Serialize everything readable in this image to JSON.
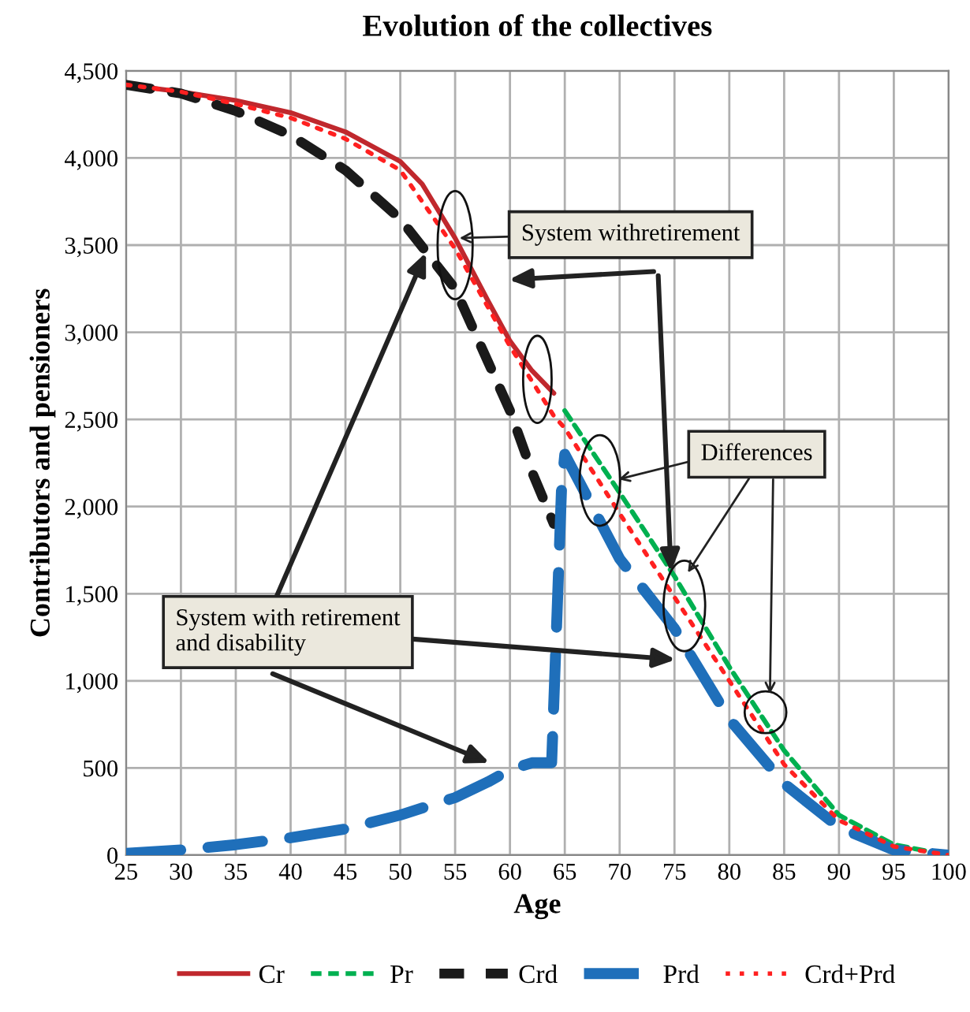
{
  "chart_data": {
    "type": "line",
    "title": "Evolution of the collectives",
    "xlabel": "Age",
    "ylabel": "Contributors and pensioners",
    "xlim": [
      25,
      100
    ],
    "xticks": [
      25,
      30,
      35,
      40,
      45,
      50,
      55,
      60,
      65,
      70,
      75,
      80,
      85,
      90,
      95,
      100
    ],
    "ylim": [
      0,
      4500
    ],
    "yticks": [
      {
        "value": 0,
        "label": "0"
      },
      {
        "value": 500,
        "label": "500"
      },
      {
        "value": 1000,
        "label": "1,000"
      },
      {
        "value": 1500,
        "label": "1,500"
      },
      {
        "value": 2000,
        "label": "2,000"
      },
      {
        "value": 2500,
        "label": "2,500"
      },
      {
        "value": 3000,
        "label": "3,000"
      },
      {
        "value": 3500,
        "label": "3,500"
      },
      {
        "value": 4000,
        "label": "4,000"
      },
      {
        "value": 4500,
        "label": "4,500"
      }
    ],
    "grid": true,
    "legend": "bottom",
    "marker": "none",
    "series": [
      {
        "name": "Cr",
        "color": "#c0282d",
        "line_style": "solid",
        "x": [
          25,
          30,
          35,
          40,
          45,
          50,
          52,
          55,
          58,
          60,
          62,
          64
        ],
        "values": [
          4420,
          4380,
          4330,
          4260,
          4150,
          3980,
          3850,
          3540,
          3180,
          2950,
          2780,
          2650
        ]
      },
      {
        "name": "Pr",
        "color": "#00b050",
        "line_style": "dashed",
        "x": [
          65,
          70,
          75,
          80,
          85,
          90,
          95,
          100
        ],
        "values": [
          2550,
          2080,
          1600,
          1080,
          600,
          230,
          60,
          0
        ]
      },
      {
        "name": "Crd",
        "color": "#1a1a1a",
        "line_style": "dashed",
        "x": [
          25,
          30,
          35,
          40,
          45,
          50,
          55,
          58,
          60,
          62,
          64
        ],
        "values": [
          4420,
          4370,
          4270,
          4130,
          3930,
          3650,
          3250,
          2830,
          2550,
          2200,
          1900
        ]
      },
      {
        "name": "Prd",
        "color": "#1f6fba",
        "line_style": "dashed",
        "x": [
          25,
          30,
          35,
          40,
          45,
          50,
          55,
          58,
          60,
          62,
          63.8,
          64.3,
          64.7,
          65,
          70,
          75,
          80,
          85,
          90,
          95,
          100
        ],
        "values": [
          10,
          30,
          60,
          100,
          150,
          230,
          330,
          420,
          490,
          530,
          530,
          1400,
          2100,
          2300,
          1700,
          1300,
          780,
          410,
          160,
          30,
          0
        ]
      },
      {
        "name": "Crd+Prd",
        "color": "#ff2020",
        "line_style": "dotted",
        "x": [
          25,
          30,
          35,
          40,
          45,
          50,
          55,
          60,
          64,
          65,
          70,
          75,
          80,
          85,
          90,
          95,
          100
        ],
        "values": [
          4420,
          4380,
          4310,
          4230,
          4110,
          3930,
          3480,
          2920,
          2520,
          2450,
          1960,
          1480,
          1000,
          520,
          200,
          50,
          0
        ]
      }
    ],
    "annotations": [
      {
        "text": "System withretirement",
        "x": 55,
        "y": 3540
      },
      {
        "text": "Differences",
        "x": 69.5,
        "y": 2150
      },
      "System with retirement\nand disability"
    ]
  }
}
